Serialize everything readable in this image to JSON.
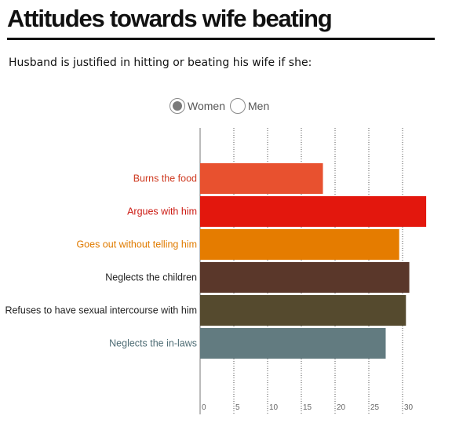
{
  "header": {
    "title": "Attitudes towards wife beating",
    "subtitle": "Husband is justified in hitting or beating his wife if she:"
  },
  "toggles": {
    "women": {
      "label": "Women",
      "selected": true
    },
    "men": {
      "label": "Men",
      "selected": false
    }
  },
  "chart_data": {
    "type": "bar",
    "orientation": "horizontal",
    "categories": [
      "Burns the food",
      "Argues with him",
      "Goes out without telling him",
      "Neglects the children",
      "Refuses to have sexual intercourse with him",
      "Neglects the in-laws"
    ],
    "values": [
      18.2,
      33.5,
      29.5,
      31,
      30.5,
      27.5
    ],
    "colors": [
      "#e8512f",
      "#e3170d",
      "#e57c00",
      "#5a372a",
      "#554a2e",
      "#627b80"
    ],
    "label_colors": [
      "#cf3b22",
      "#cc1a12",
      "#e07b00",
      "#222222",
      "#222222",
      "#4f6d75"
    ],
    "xticks": [
      0,
      5,
      10,
      15,
      20,
      25,
      30
    ],
    "xlim": [
      0,
      35
    ],
    "grid": "vertical dotted",
    "title": "",
    "xlabel": "",
    "ylabel": ""
  }
}
